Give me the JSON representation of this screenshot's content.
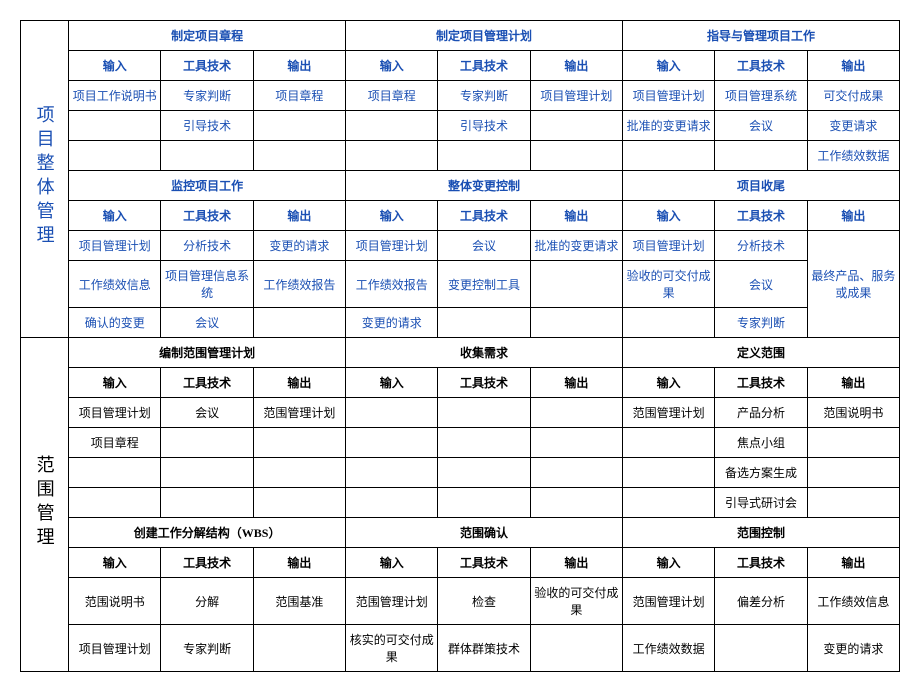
{
  "colors": {
    "text_blue": "#1a4fb3",
    "border": "#000000",
    "bg": "#ffffff"
  },
  "font": {
    "family": "SimSun",
    "body_pt": 12,
    "side_pt": 18
  },
  "labels": {
    "in": "输入",
    "tt": "工具技术",
    "out": "输出"
  },
  "sections": [
    {
      "side": "项目整体管理",
      "side_blue": true,
      "rows": [
        {
          "titles_blue": true,
          "headers_blue": true,
          "cells_blue": true,
          "groups": [
            {
              "title": "制定项目章程",
              "cells": [
                [
                  "项目工作说明书",
                  "专家判断",
                  "项目章程"
                ],
                [
                  "",
                  "引导技术",
                  ""
                ],
                [
                  "",
                  "",
                  ""
                ]
              ]
            },
            {
              "title": "制定项目管理计划",
              "cells": [
                [
                  "项目章程",
                  "专家判断",
                  "项目管理计划"
                ],
                [
                  "",
                  "引导技术",
                  ""
                ],
                [
                  "",
                  "",
                  ""
                ]
              ]
            },
            {
              "title": "指导与管理项目工作",
              "cells": [
                [
                  "项目管理计划",
                  "项目管理系统",
                  "可交付成果"
                ],
                [
                  "批准的变更请求",
                  "会议",
                  "变更请求"
                ],
                [
                  "",
                  "",
                  "工作绩效数据"
                ]
              ]
            }
          ]
        },
        {
          "titles_blue": true,
          "headers_blue": true,
          "cells_blue": true,
          "groups": [
            {
              "title": "监控项目工作",
              "cells": [
                [
                  "项目管理计划",
                  "分析技术",
                  "变更的请求"
                ],
                [
                  "工作绩效信息",
                  "项目管理信息系统",
                  "工作绩效报告"
                ],
                [
                  "确认的变更",
                  "会议",
                  ""
                ]
              ]
            },
            {
              "title": "整体变更控制",
              "cells": [
                [
                  "项目管理计划",
                  "会议",
                  "批准的变更请求"
                ],
                [
                  "工作绩效报告",
                  "变更控制工具",
                  ""
                ],
                [
                  "变更的请求",
                  "",
                  ""
                ]
              ]
            },
            {
              "title": "项目收尾",
              "out_merge": {
                "text": "最终产品、服务或成果",
                "rowspan": 3
              },
              "cells": [
                [
                  "项目管理计划",
                  "分析技术",
                  null
                ],
                [
                  "验收的可交付成果",
                  "会议",
                  null
                ],
                [
                  "",
                  "专家判断",
                  null
                ]
              ]
            }
          ]
        }
      ]
    },
    {
      "side": "范围管理",
      "side_blue": false,
      "rows": [
        {
          "titles_blue": false,
          "headers_blue": false,
          "cells_blue": false,
          "groups": [
            {
              "title": "编制范围管理计划",
              "cells": [
                [
                  "项目管理计划",
                  "会议",
                  "范围管理计划"
                ],
                [
                  "项目章程",
                  "",
                  ""
                ],
                [
                  "",
                  "",
                  ""
                ],
                [
                  "",
                  "",
                  ""
                ]
              ]
            },
            {
              "title": "收集需求",
              "cells": [
                [
                  "",
                  "",
                  ""
                ],
                [
                  "",
                  "",
                  ""
                ],
                [
                  "",
                  "",
                  ""
                ],
                [
                  "",
                  "",
                  ""
                ]
              ]
            },
            {
              "title": "定义范围",
              "cells": [
                [
                  "范围管理计划",
                  "产品分析",
                  "范围说明书"
                ],
                [
                  "",
                  "焦点小组",
                  ""
                ],
                [
                  "",
                  "备选方案生成",
                  ""
                ],
                [
                  "",
                  "引导式研讨会",
                  ""
                ]
              ]
            }
          ]
        },
        {
          "titles_blue": false,
          "headers_blue": false,
          "cells_blue": false,
          "groups": [
            {
              "title": "创建工作分解结构（WBS）",
              "cells": [
                [
                  "范围说明书",
                  "分解",
                  "范围基准"
                ],
                [
                  "项目管理计划",
                  "专家判断",
                  ""
                ]
              ]
            },
            {
              "title": "范围确认",
              "cells": [
                [
                  "范围管理计划",
                  "检查",
                  "验收的可交付成果"
                ],
                [
                  "核实的可交付成果",
                  "群体群策技术",
                  ""
                ]
              ]
            },
            {
              "title": "范围控制",
              "cells": [
                [
                  "范围管理计划",
                  "偏差分析",
                  "工作绩效信息"
                ],
                [
                  "工作绩效数据",
                  "",
                  "变更的请求"
                ]
              ]
            }
          ]
        }
      ]
    }
  ]
}
